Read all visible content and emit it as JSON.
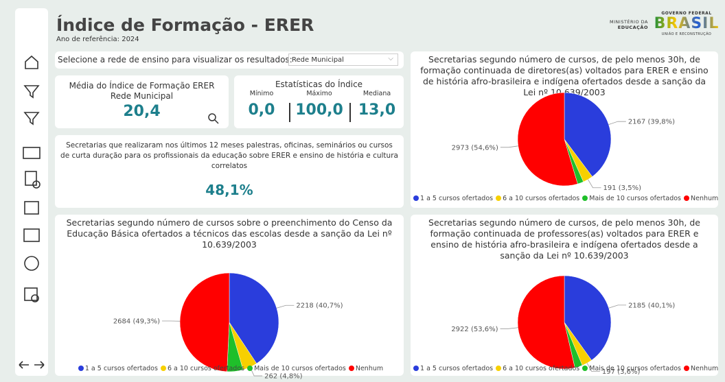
{
  "header": {
    "title": "Índice de Formação - ERER",
    "subtitle": "Ano de referência: 2024",
    "logo": {
      "ministry": "MINISTÉRIO DA",
      "ministry2": "EDUCAÇÃO",
      "gov": "GOVERNO FEDERAL",
      "brand": "BRASIL",
      "motto": "UNIÃO E RECONSTRUÇÃO"
    }
  },
  "selector": {
    "label": "Selecione a rede de ensino para visualizar os resultados:",
    "value": "Rede Municipal"
  },
  "mean_card": {
    "title": "Média do Índice de Formação ERER",
    "subtitle": "Rede Municipal",
    "value": "20,4"
  },
  "stats_card": {
    "title": "Estatísticas do Índice",
    "labels": [
      "Mínimo",
      "Máximo",
      "Mediana"
    ],
    "values": [
      "0,0",
      "100,0",
      "13,0"
    ]
  },
  "activity_card": {
    "text": "Secretarias que realizaram nos últimos 12 meses palestras, oficinas, seminários ou cursos de curta duração para os profissionais da educação sobre ERER e ensino de história e cultura correlatos",
    "value": "48,1%"
  },
  "chart_data": [
    {
      "type": "pie",
      "title": "Secretarias segundo número de cursos, de pelo menos 30h, de formação continuada de diretores(as) voltados para ERER e ensino de história afro-brasileira e indígena ofertados desde a sanção da Lei nº 10.639/2003",
      "categories": [
        "1 a 5 cursos ofertados",
        "6 a 10 cursos ofertados",
        "Mais de 10 cursos ofertados",
        "Nenhum"
      ],
      "values": [
        2167,
        191,
        114,
        2973
      ],
      "value_labels": [
        "2167 (39,8%)",
        "191 (3,5%)",
        null,
        "2973 (54,6%)"
      ],
      "colors": [
        "#2a3ddc",
        "#f7d000",
        "#1fbf2a",
        "#ff0000"
      ]
    },
    {
      "type": "pie",
      "title": "Secretarias segundo número de cursos sobre o preenchimento do Censo da Educação Básica ofertados a técnicos das escolas desde a sanção da Lei nº 10.639/2003",
      "categories": [
        "1 a 5 cursos ofertados",
        "6 a 10 cursos ofertados",
        "Mais de 10 cursos ofertados",
        "Nenhum"
      ],
      "values": [
        2218,
        262,
        286,
        2684
      ],
      "value_labels": [
        "2218 (40,7%)",
        "262 (4,8%)",
        null,
        "2684 (49,3%)"
      ],
      "colors": [
        "#2a3ddc",
        "#f7d000",
        "#1fbf2a",
        "#ff0000"
      ]
    },
    {
      "type": "pie",
      "title": "Secretarias segundo número de cursos, de pelo menos 30h, de formação continuada de professores(as) voltados para ERER e ensino de história afro-brasileira e indígena ofertados desde a sanção da Lei nº 10.639/2003",
      "categories": [
        "1 a 5 cursos ofertados",
        "6 a 10 cursos ofertados",
        "Mais de 10 cursos ofertados",
        "Nenhum"
      ],
      "values": [
        2185,
        197,
        145,
        2922
      ],
      "value_labels": [
        "2185 (40,1%)",
        "197 (3,6%)",
        null,
        "2922 (53,6%)"
      ],
      "colors": [
        "#2a3ddc",
        "#f7d000",
        "#1fbf2a",
        "#ff0000"
      ]
    }
  ]
}
